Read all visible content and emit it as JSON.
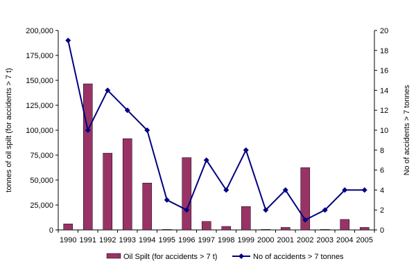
{
  "chart_data": {
    "type": "bar",
    "title": "",
    "categories": [
      "1990",
      "1991",
      "1992",
      "1993",
      "1994",
      "1995",
      "1996",
      "1997",
      "1998",
      "1999",
      "2000",
      "2001",
      "2002",
      "2003",
      "2004",
      "2005"
    ],
    "series": [
      {
        "name": "Oil Spilt (for accidents > 7 t)",
        "type": "bar",
        "axis": "left",
        "color": "#993366",
        "values": [
          6000,
          146500,
          77000,
          91500,
          47000,
          500,
          72500,
          8500,
          3500,
          23500,
          500,
          2500,
          62500,
          500,
          10500,
          2500
        ]
      },
      {
        "name": "No of accidents > 7 tonnes",
        "type": "line",
        "axis": "right",
        "color": "#000080",
        "marker": "diamond",
        "values": [
          19,
          10,
          14,
          12,
          10,
          3,
          2,
          7,
          4,
          8,
          2,
          4,
          1,
          2,
          4,
          4
        ]
      }
    ],
    "ylabel_left": "tonnes of oil spilt (for accidents > 7 t)",
    "ylabel_right": "No of accidents > 7 tonnes",
    "ylim_left": [
      0,
      200000
    ],
    "ylim_right": [
      0,
      20
    ],
    "yticks_left": [
      "0",
      "25,000",
      "50,000",
      "75,000",
      "100,000",
      "125,000",
      "150,000",
      "175,000",
      "200,000"
    ],
    "yticks_right": [
      "0",
      "2",
      "4",
      "6",
      "8",
      "10",
      "12",
      "14",
      "16",
      "18",
      "20"
    ],
    "grid": false,
    "legend_position": "bottom"
  }
}
